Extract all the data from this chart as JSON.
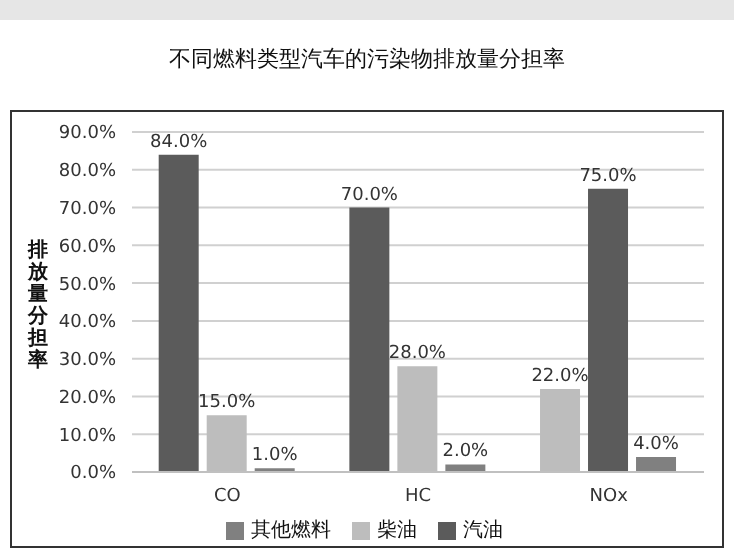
{
  "chart_data": {
    "type": "bar",
    "title": "不同燃料类型汽车的污染物排放量分担率",
    "ylabel": "排放量分担率",
    "categories": [
      "CO",
      "HC",
      "NOx"
    ],
    "series": [
      {
        "name": "汽油",
        "color": "#5b5b5b",
        "colors": [
          "#5b5b5b",
          "#5b5b5b",
          "#bdbdbd"
        ],
        "values": [
          84,
          70,
          22
        ],
        "value_labels": [
          "84.0%",
          "70.0%",
          "22.0%"
        ]
      },
      {
        "name": "柴油",
        "color": "#bdbdbd",
        "colors": [
          "#bdbdbd",
          "#bdbdbd",
          "#5b5b5b"
        ],
        "values": [
          15,
          28,
          75
        ],
        "value_labels": [
          "15.0%",
          "28.0%",
          "75.0%"
        ]
      },
      {
        "name": "其他燃料",
        "color": "#808080",
        "values": [
          1,
          2,
          4
        ],
        "value_labels": [
          "1.0%",
          "2.0%",
          "4.0%"
        ]
      }
    ],
    "ylim": [
      0,
      90
    ],
    "yticks": [
      {
        "value": 0,
        "label": "0.0%"
      },
      {
        "value": 10,
        "label": "10.0%"
      },
      {
        "value": 20,
        "label": "20.0%"
      },
      {
        "value": 30,
        "label": "30.0%"
      },
      {
        "value": 40,
        "label": "40.0%"
      },
      {
        "value": 50,
        "label": "50.0%"
      },
      {
        "value": 60,
        "label": "60.0%"
      },
      {
        "value": 70,
        "label": "70.0%"
      },
      {
        "value": 80,
        "label": "80.0%"
      },
      {
        "value": 90,
        "label": "90.0%"
      }
    ],
    "grid": "y",
    "legend": "bottom"
  }
}
